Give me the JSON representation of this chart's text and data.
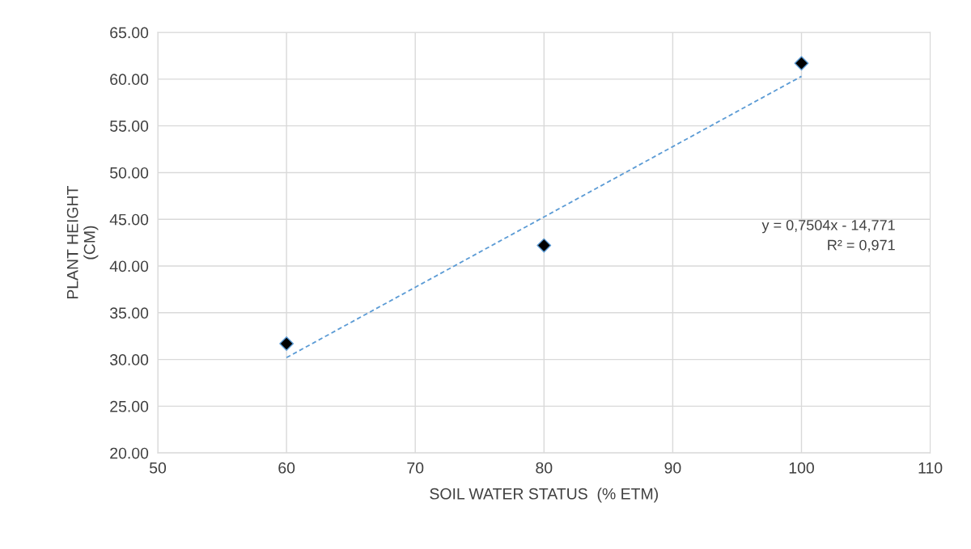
{
  "chart_data": {
    "type": "scatter",
    "xlabel": "SOIL WATER STATUS  (% ETM)",
    "ylabel": "PLANT HEIGHT\n(CM)",
    "series": [
      {
        "color": "#000000",
        "x": [
          60,
          80,
          100
        ],
        "values": [
          31.7,
          42.2,
          61.7
        ],
        "marker": "diamond"
      },
      {
        "type": "line",
        "color": "#5b9bd5",
        "x": [
          60,
          100
        ],
        "values": [
          30.2,
          60.3
        ],
        "line_style": "dashed",
        "marker": "none"
      }
    ],
    "xlim": [
      50,
      110
    ],
    "xticks": [
      50,
      60,
      70,
      80,
      90,
      100,
      110
    ],
    "ylim": [
      20,
      65
    ],
    "yticks": [
      {
        "value": 20,
        "label": "20.00"
      },
      {
        "value": 25,
        "label": "25.00"
      },
      {
        "value": 30,
        "label": "30.00"
      },
      {
        "value": 35,
        "label": "35.00"
      },
      {
        "value": 40,
        "label": "40.00"
      },
      {
        "value": 45,
        "label": "45.00"
      },
      {
        "value": 50,
        "label": "50.00"
      },
      {
        "value": 55,
        "label": "55.00"
      },
      {
        "value": 60,
        "label": "60.00"
      },
      {
        "value": 65,
        "label": "65.00"
      }
    ],
    "grid": true,
    "annotations": [
      "y = 0,7504x - 14,771\nR² = 0,971"
    ]
  }
}
